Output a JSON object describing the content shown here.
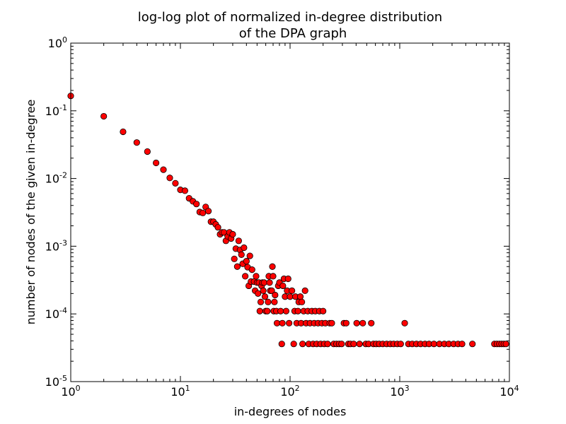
{
  "chart_data": {
    "type": "scatter",
    "title": [
      "log-log plot of normalized in-degree distribution",
      "of the DPA graph"
    ],
    "xlabel": "in-degrees of nodes",
    "ylabel": "number of nodes of the given in-degree",
    "xscale": "log",
    "yscale": "log",
    "xlim": [
      1,
      10000
    ],
    "ylim": [
      1e-05,
      1
    ],
    "x_ticks": [
      {
        "value": 1,
        "base": "10",
        "exp": "0"
      },
      {
        "value": 10,
        "base": "10",
        "exp": "1"
      },
      {
        "value": 100,
        "base": "10",
        "exp": "2"
      },
      {
        "value": 1000,
        "base": "10",
        "exp": "3"
      },
      {
        "value": 10000,
        "base": "10",
        "exp": "4"
      }
    ],
    "y_ticks": [
      {
        "value": 1,
        "base": "10",
        "exp": "0"
      },
      {
        "value": 0.1,
        "base": "10",
        "exp": "-1"
      },
      {
        "value": 0.01,
        "base": "10",
        "exp": "-2"
      },
      {
        "value": 0.001,
        "base": "10",
        "exp": "-3"
      },
      {
        "value": 0.0001,
        "base": "10",
        "exp": "-4"
      },
      {
        "value": 1e-05,
        "base": "10",
        "exp": "-5"
      }
    ],
    "grid": false,
    "legend": "none",
    "marker_color": "#ff0000",
    "marker_edge": "#000000",
    "points": [
      [
        1,
        0.166
      ],
      [
        2,
        0.083
      ],
      [
        3,
        0.049
      ],
      [
        4,
        0.034
      ],
      [
        5,
        0.025
      ],
      [
        6,
        0.017
      ],
      [
        7,
        0.0135
      ],
      [
        8,
        0.0102
      ],
      [
        9,
        0.0085
      ],
      [
        10,
        0.0068
      ],
      [
        11,
        0.0066
      ],
      [
        12,
        0.0051
      ],
      [
        13,
        0.0046
      ],
      [
        14,
        0.0042
      ],
      [
        15,
        0.0032
      ],
      [
        16,
        0.0031
      ],
      [
        17,
        0.0038
      ],
      [
        18,
        0.0033
      ],
      [
        19,
        0.0023
      ],
      [
        20,
        0.0023
      ],
      [
        21,
        0.0021
      ],
      [
        22,
        0.0019
      ],
      [
        23,
        0.0015
      ],
      [
        24,
        0.0016
      ],
      [
        25,
        0.0016
      ],
      [
        26,
        0.0012
      ],
      [
        27,
        0.0014
      ],
      [
        28,
        0.0016
      ],
      [
        29,
        0.0013
      ],
      [
        30,
        0.0015
      ],
      [
        31,
        0.00065
      ],
      [
        32,
        0.00092
      ],
      [
        33,
        0.0005
      ],
      [
        34,
        0.0012
      ],
      [
        35,
        0.00088
      ],
      [
        36,
        0.00075
      ],
      [
        37,
        0.00055
      ],
      [
        38,
        0.00095
      ],
      [
        39,
        0.00036
      ],
      [
        40,
        0.0006
      ],
      [
        41,
        0.00049
      ],
      [
        42,
        0.00026
      ],
      [
        43,
        0.00072
      ],
      [
        44,
        0.0003
      ],
      [
        45,
        0.00045
      ],
      [
        47,
        0.0003
      ],
      [
        48,
        0.00022
      ],
      [
        49,
        0.00036
      ],
      [
        50,
        0.00029
      ],
      [
        51,
        0.0002
      ],
      [
        52,
        0.00029
      ],
      [
        53,
        0.00011
      ],
      [
        54,
        0.00015
      ],
      [
        55,
        0.00026
      ],
      [
        56,
        0.00029
      ],
      [
        57,
        0.00022
      ],
      [
        58,
        0.00029
      ],
      [
        59,
        0.00018
      ],
      [
        60,
        0.00011
      ],
      [
        62,
        0.00011
      ],
      [
        63,
        0.00015
      ],
      [
        64,
        0.00036
      ],
      [
        65,
        0.00029
      ],
      [
        66,
        0.00022
      ],
      [
        68,
        0.00022
      ],
      [
        69,
        0.0005
      ],
      [
        70,
        0.00036
      ],
      [
        71,
        0.00011
      ],
      [
        72,
        0.00015
      ],
      [
        73,
        0.00019
      ],
      [
        75,
        0.00011
      ],
      [
        76,
        7.3e-05
      ],
      [
        78,
        0.00026
      ],
      [
        80,
        0.00029
      ],
      [
        82,
        0.00011
      ],
      [
        84,
        3.6e-05
      ],
      [
        85,
        7.3e-05
      ],
      [
        86,
        0.00026
      ],
      [
        88,
        0.00033
      ],
      [
        90,
        0.00018
      ],
      [
        92,
        0.00011
      ],
      [
        94,
        0.00022
      ],
      [
        96,
        0.00033
      ],
      [
        98,
        7.3e-05
      ],
      [
        100,
        0.00018
      ],
      [
        104,
        0.00022
      ],
      [
        108,
        3.6e-05
      ],
      [
        110,
        0.00011
      ],
      [
        112,
        0.00018
      ],
      [
        115,
        7.3e-05
      ],
      [
        118,
        0.00011
      ],
      [
        120,
        0.00015
      ],
      [
        124,
        0.00018
      ],
      [
        126,
        7.3e-05
      ],
      [
        128,
        0.00015
      ],
      [
        130,
        3.6e-05
      ],
      [
        133,
        0.00011
      ],
      [
        137,
        0.00022
      ],
      [
        140,
        7.3e-05
      ],
      [
        145,
        0.00011
      ],
      [
        148,
        3.6e-05
      ],
      [
        152,
        7.3e-05
      ],
      [
        158,
        0.00011
      ],
      [
        162,
        3.6e-05
      ],
      [
        166,
        7.3e-05
      ],
      [
        170,
        0.00011
      ],
      [
        175,
        3.6e-05
      ],
      [
        180,
        7.3e-05
      ],
      [
        185,
        0.00011
      ],
      [
        190,
        3.6e-05
      ],
      [
        195,
        7.3e-05
      ],
      [
        200,
        0.00011
      ],
      [
        205,
        3.6e-05
      ],
      [
        210,
        7.3e-05
      ],
      [
        220,
        3.6e-05
      ],
      [
        230,
        7.3e-05
      ],
      [
        240,
        7.3e-05
      ],
      [
        250,
        3.6e-05
      ],
      [
        265,
        3.6e-05
      ],
      [
        280,
        3.6e-05
      ],
      [
        295,
        3.6e-05
      ],
      [
        310,
        7.3e-05
      ],
      [
        325,
        7.3e-05
      ],
      [
        340,
        3.6e-05
      ],
      [
        355,
        3.6e-05
      ],
      [
        380,
        3.6e-05
      ],
      [
        405,
        7.3e-05
      ],
      [
        430,
        3.6e-05
      ],
      [
        460,
        7.3e-05
      ],
      [
        490,
        3.6e-05
      ],
      [
        520,
        3.6e-05
      ],
      [
        550,
        7.3e-05
      ],
      [
        575,
        3.6e-05
      ],
      [
        610,
        3.6e-05
      ],
      [
        650,
        3.6e-05
      ],
      [
        700,
        3.6e-05
      ],
      [
        760,
        3.6e-05
      ],
      [
        820,
        3.6e-05
      ],
      [
        880,
        3.6e-05
      ],
      [
        950,
        3.6e-05
      ],
      [
        1020,
        3.6e-05
      ],
      [
        1110,
        7.3e-05
      ],
      [
        1200,
        3.6e-05
      ],
      [
        1300,
        3.6e-05
      ],
      [
        1420,
        3.6e-05
      ],
      [
        1550,
        3.6e-05
      ],
      [
        1700,
        3.6e-05
      ],
      [
        1850,
        3.6e-05
      ],
      [
        2050,
        3.6e-05
      ],
      [
        2300,
        3.6e-05
      ],
      [
        2550,
        3.6e-05
      ],
      [
        2800,
        3.6e-05
      ],
      [
        3100,
        3.6e-05
      ],
      [
        3400,
        3.6e-05
      ],
      [
        3700,
        3.6e-05
      ],
      [
        4600,
        3.6e-05
      ],
      [
        7300,
        3.6e-05
      ],
      [
        7700,
        3.6e-05
      ],
      [
        8100,
        3.6e-05
      ],
      [
        8500,
        3.6e-05
      ],
      [
        8900,
        3.6e-05
      ],
      [
        9300,
        3.6e-05
      ]
    ]
  }
}
